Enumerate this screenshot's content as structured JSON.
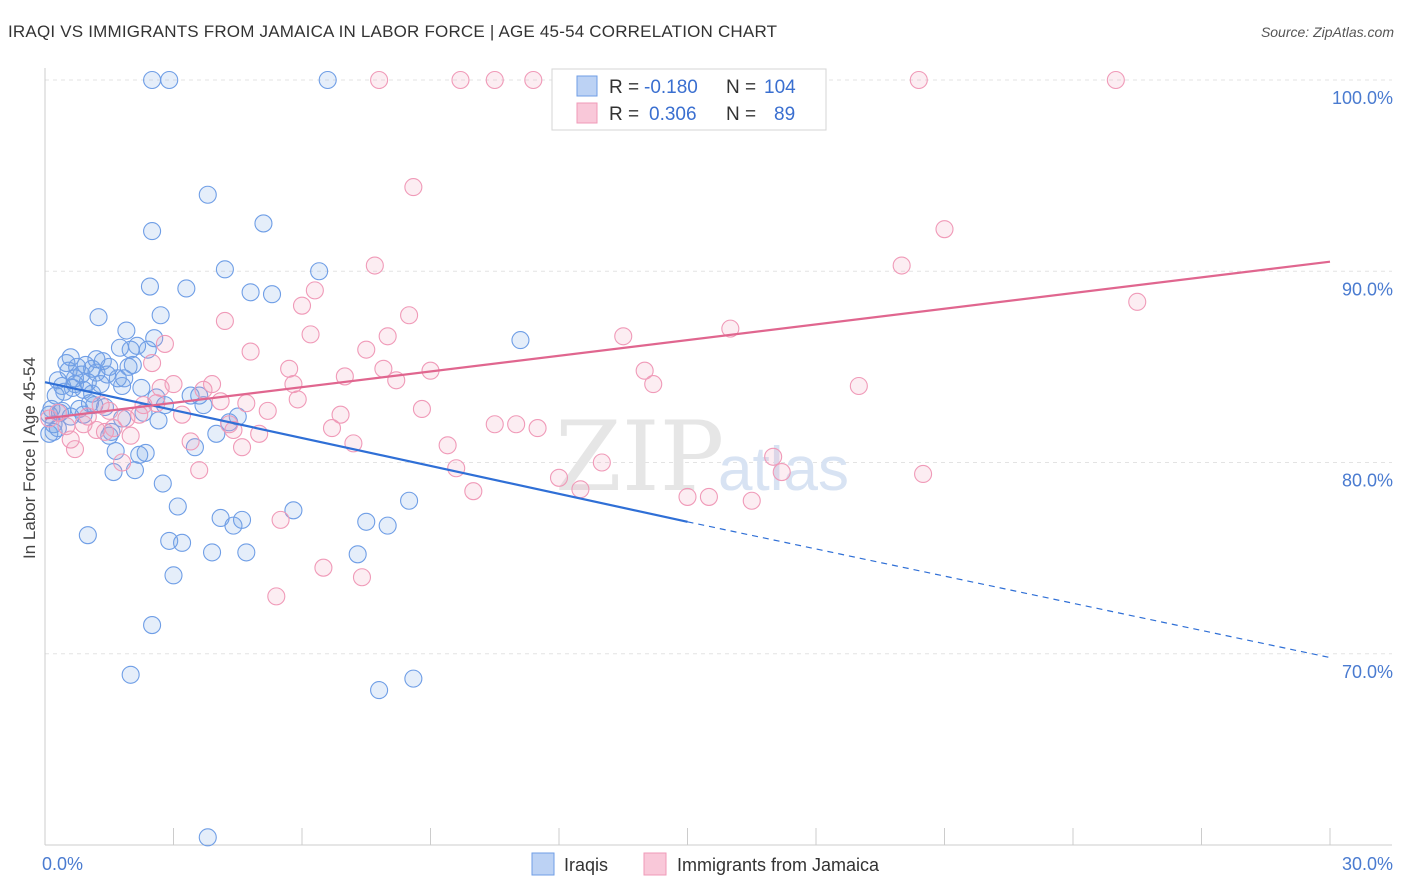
{
  "title": "IRAQI VS IMMIGRANTS FROM JAMAICA IN LABOR FORCE | AGE 45-54 CORRELATION CHART",
  "source": "Source: ZipAtlas.com",
  "watermark": {
    "zip": "ZIP",
    "atlas": "atlas"
  },
  "legend": {
    "r_label": "R =",
    "n_label": "N =",
    "rows": [
      {
        "r": "-0.180",
        "n": "104"
      },
      {
        "r": "0.306",
        "n": "89"
      }
    ]
  },
  "chart_data": {
    "type": "scatter",
    "ylabel": "In Labor Force | Age 45-54",
    "xlim": [
      0,
      30
    ],
    "ylim": [
      60,
      100
    ],
    "x_tick_labels": [
      "0.0%",
      "30.0%"
    ],
    "y_ticks": [
      70,
      80,
      90,
      100
    ],
    "y_tick_labels": [
      "70.0%",
      "80.0%",
      "90.0%",
      "100.0%"
    ],
    "grid": true,
    "series": [
      {
        "name": "Iraqis",
        "color": "#6f9ee6",
        "trend": {
          "x0": 0.0,
          "y0": 84.2,
          "x1": 15.0,
          "y1": 76.9,
          "dash_to_x": 30.0,
          "dash_to_y": 69.8
        },
        "points": [
          [
            0.1,
            82.5
          ],
          [
            0.1,
            81.5
          ],
          [
            0.15,
            82.8
          ],
          [
            0.2,
            82.0
          ],
          [
            0.25,
            83.5
          ],
          [
            0.3,
            84.3
          ],
          [
            0.35,
            82.6
          ],
          [
            0.4,
            84.0
          ],
          [
            0.45,
            83.7
          ],
          [
            0.5,
            85.2
          ],
          [
            0.55,
            84.8
          ],
          [
            0.6,
            85.5
          ],
          [
            0.65,
            83.9
          ],
          [
            0.7,
            84.4
          ],
          [
            0.75,
            85.0
          ],
          [
            0.8,
            82.8
          ],
          [
            0.85,
            84.6
          ],
          [
            0.9,
            83.8
          ],
          [
            0.95,
            85.1
          ],
          [
            1.0,
            84.2
          ],
          [
            1.05,
            83.1
          ],
          [
            1.1,
            84.9
          ],
          [
            1.15,
            83.0
          ],
          [
            1.2,
            85.4
          ],
          [
            1.25,
            87.6
          ],
          [
            1.3,
            84.1
          ],
          [
            1.35,
            85.3
          ],
          [
            1.4,
            82.9
          ],
          [
            1.45,
            84.6
          ],
          [
            1.5,
            81.4
          ],
          [
            1.55,
            81.6
          ],
          [
            1.6,
            79.5
          ],
          [
            1.65,
            80.6
          ],
          [
            1.7,
            84.4
          ],
          [
            1.75,
            86.0
          ],
          [
            1.8,
            82.3
          ],
          [
            1.85,
            84.4
          ],
          [
            1.9,
            86.9
          ],
          [
            1.95,
            85.0
          ],
          [
            2.0,
            85.9
          ],
          [
            2.05,
            85.1
          ],
          [
            2.1,
            79.6
          ],
          [
            2.15,
            86.1
          ],
          [
            2.2,
            80.4
          ],
          [
            2.25,
            83.9
          ],
          [
            2.3,
            82.6
          ],
          [
            2.35,
            80.5
          ],
          [
            2.4,
            85.9
          ],
          [
            2.45,
            89.2
          ],
          [
            2.5,
            92.1
          ],
          [
            2.55,
            86.5
          ],
          [
            2.6,
            83.4
          ],
          [
            2.65,
            82.2
          ],
          [
            2.7,
            87.7
          ],
          [
            2.75,
            78.9
          ],
          [
            2.8,
            83.0
          ],
          [
            2.9,
            75.9
          ],
          [
            3.0,
            74.1
          ],
          [
            3.1,
            77.7
          ],
          [
            3.2,
            75.8
          ],
          [
            3.3,
            89.1
          ],
          [
            3.4,
            83.5
          ],
          [
            3.5,
            80.8
          ],
          [
            3.6,
            83.5
          ],
          [
            3.7,
            83.0
          ],
          [
            3.8,
            94.0
          ],
          [
            3.9,
            75.3
          ],
          [
            4.0,
            81.5
          ],
          [
            4.1,
            77.1
          ],
          [
            4.2,
            90.1
          ],
          [
            4.3,
            82.1
          ],
          [
            4.4,
            76.7
          ],
          [
            4.5,
            82.4
          ],
          [
            4.6,
            77.0
          ],
          [
            4.7,
            75.3
          ],
          [
            4.8,
            88.9
          ],
          [
            5.1,
            92.5
          ],
          [
            5.3,
            88.8
          ],
          [
            5.8,
            77.5
          ],
          [
            6.4,
            90.0
          ],
          [
            6.6,
            100.0
          ],
          [
            7.3,
            75.2
          ],
          [
            7.5,
            76.9
          ],
          [
            7.8,
            68.1
          ],
          [
            8.0,
            76.7
          ],
          [
            8.5,
            78.0
          ],
          [
            8.6,
            68.7
          ],
          [
            2.0,
            68.9
          ],
          [
            2.5,
            71.5
          ],
          [
            1.0,
            76.2
          ],
          [
            2.5,
            100.0
          ],
          [
            2.9,
            100.0
          ],
          [
            3.8,
            60.4
          ],
          [
            11.1,
            86.4
          ],
          [
            0.3,
            81.8
          ],
          [
            0.6,
            82.4
          ],
          [
            0.9,
            82.5
          ],
          [
            1.2,
            84.7
          ],
          [
            1.5,
            85.0
          ],
          [
            1.8,
            84.0
          ],
          [
            0.2,
            81.6
          ],
          [
            0.4,
            82.7
          ],
          [
            0.7,
            84.1
          ],
          [
            1.1,
            83.6
          ]
        ]
      },
      {
        "name": "Immigrants from Jamaica",
        "color": "#f09ab8",
        "trend": {
          "x0": 0.0,
          "y0": 82.3,
          "x1": 30.0,
          "y1": 90.5
        },
        "points": [
          [
            0.1,
            82.3
          ],
          [
            0.3,
            82.6
          ],
          [
            0.5,
            81.9
          ],
          [
            0.6,
            81.2
          ],
          [
            0.7,
            80.7
          ],
          [
            0.9,
            82.0
          ],
          [
            1.0,
            82.4
          ],
          [
            1.2,
            81.7
          ],
          [
            1.3,
            83.0
          ],
          [
            1.5,
            82.7
          ],
          [
            1.6,
            81.8
          ],
          [
            1.8,
            80.0
          ],
          [
            1.9,
            82.3
          ],
          [
            2.0,
            81.4
          ],
          [
            2.2,
            82.5
          ],
          [
            2.3,
            83.0
          ],
          [
            2.5,
            85.2
          ],
          [
            2.7,
            83.9
          ],
          [
            2.8,
            86.2
          ],
          [
            3.0,
            84.1
          ],
          [
            3.2,
            82.5
          ],
          [
            3.4,
            81.1
          ],
          [
            3.6,
            79.6
          ],
          [
            3.7,
            83.8
          ],
          [
            3.9,
            84.1
          ],
          [
            4.1,
            83.2
          ],
          [
            4.2,
            87.4
          ],
          [
            4.3,
            82.0
          ],
          [
            4.4,
            81.7
          ],
          [
            4.6,
            80.8
          ],
          [
            4.7,
            83.1
          ],
          [
            4.8,
            85.8
          ],
          [
            5.0,
            81.5
          ],
          [
            5.2,
            82.7
          ],
          [
            5.4,
            73.0
          ],
          [
            5.5,
            77.0
          ],
          [
            5.7,
            84.9
          ],
          [
            5.8,
            84.1
          ],
          [
            5.9,
            83.3
          ],
          [
            6.0,
            88.2
          ],
          [
            6.2,
            86.7
          ],
          [
            6.3,
            89.0
          ],
          [
            6.5,
            74.5
          ],
          [
            6.7,
            81.8
          ],
          [
            6.9,
            82.5
          ],
          [
            7.0,
            84.5
          ],
          [
            7.2,
            81.0
          ],
          [
            7.4,
            74.0
          ],
          [
            7.5,
            85.9
          ],
          [
            7.7,
            90.3
          ],
          [
            7.9,
            84.9
          ],
          [
            8.0,
            86.6
          ],
          [
            8.2,
            84.3
          ],
          [
            8.5,
            87.7
          ],
          [
            8.6,
            94.4
          ],
          [
            8.8,
            82.8
          ],
          [
            9.0,
            84.8
          ],
          [
            9.4,
            80.9
          ],
          [
            9.6,
            79.7
          ],
          [
            10.0,
            78.5
          ],
          [
            10.5,
            82.0
          ],
          [
            11.0,
            82.0
          ],
          [
            11.5,
            81.8
          ],
          [
            12.0,
            79.2
          ],
          [
            12.5,
            78.6
          ],
          [
            13.0,
            80.0
          ],
          [
            13.5,
            86.6
          ],
          [
            14.0,
            84.8
          ],
          [
            14.2,
            84.1
          ],
          [
            15.0,
            78.2
          ],
          [
            15.5,
            78.2
          ],
          [
            16.0,
            87.0
          ],
          [
            16.5,
            78.0
          ],
          [
            17.0,
            80.3
          ],
          [
            17.2,
            79.5
          ],
          [
            19.0,
            84.0
          ],
          [
            20.0,
            90.3
          ],
          [
            20.5,
            79.4
          ],
          [
            21.0,
            92.2
          ],
          [
            25.5,
            88.4
          ],
          [
            7.8,
            100.0
          ],
          [
            9.7,
            100.0
          ],
          [
            10.5,
            100.0
          ],
          [
            11.4,
            100.0
          ],
          [
            12.6,
            100.0
          ],
          [
            20.4,
            100.0
          ],
          [
            25.0,
            100.0
          ],
          [
            1.4,
            81.6
          ],
          [
            2.6,
            83.1
          ]
        ]
      }
    ]
  }
}
